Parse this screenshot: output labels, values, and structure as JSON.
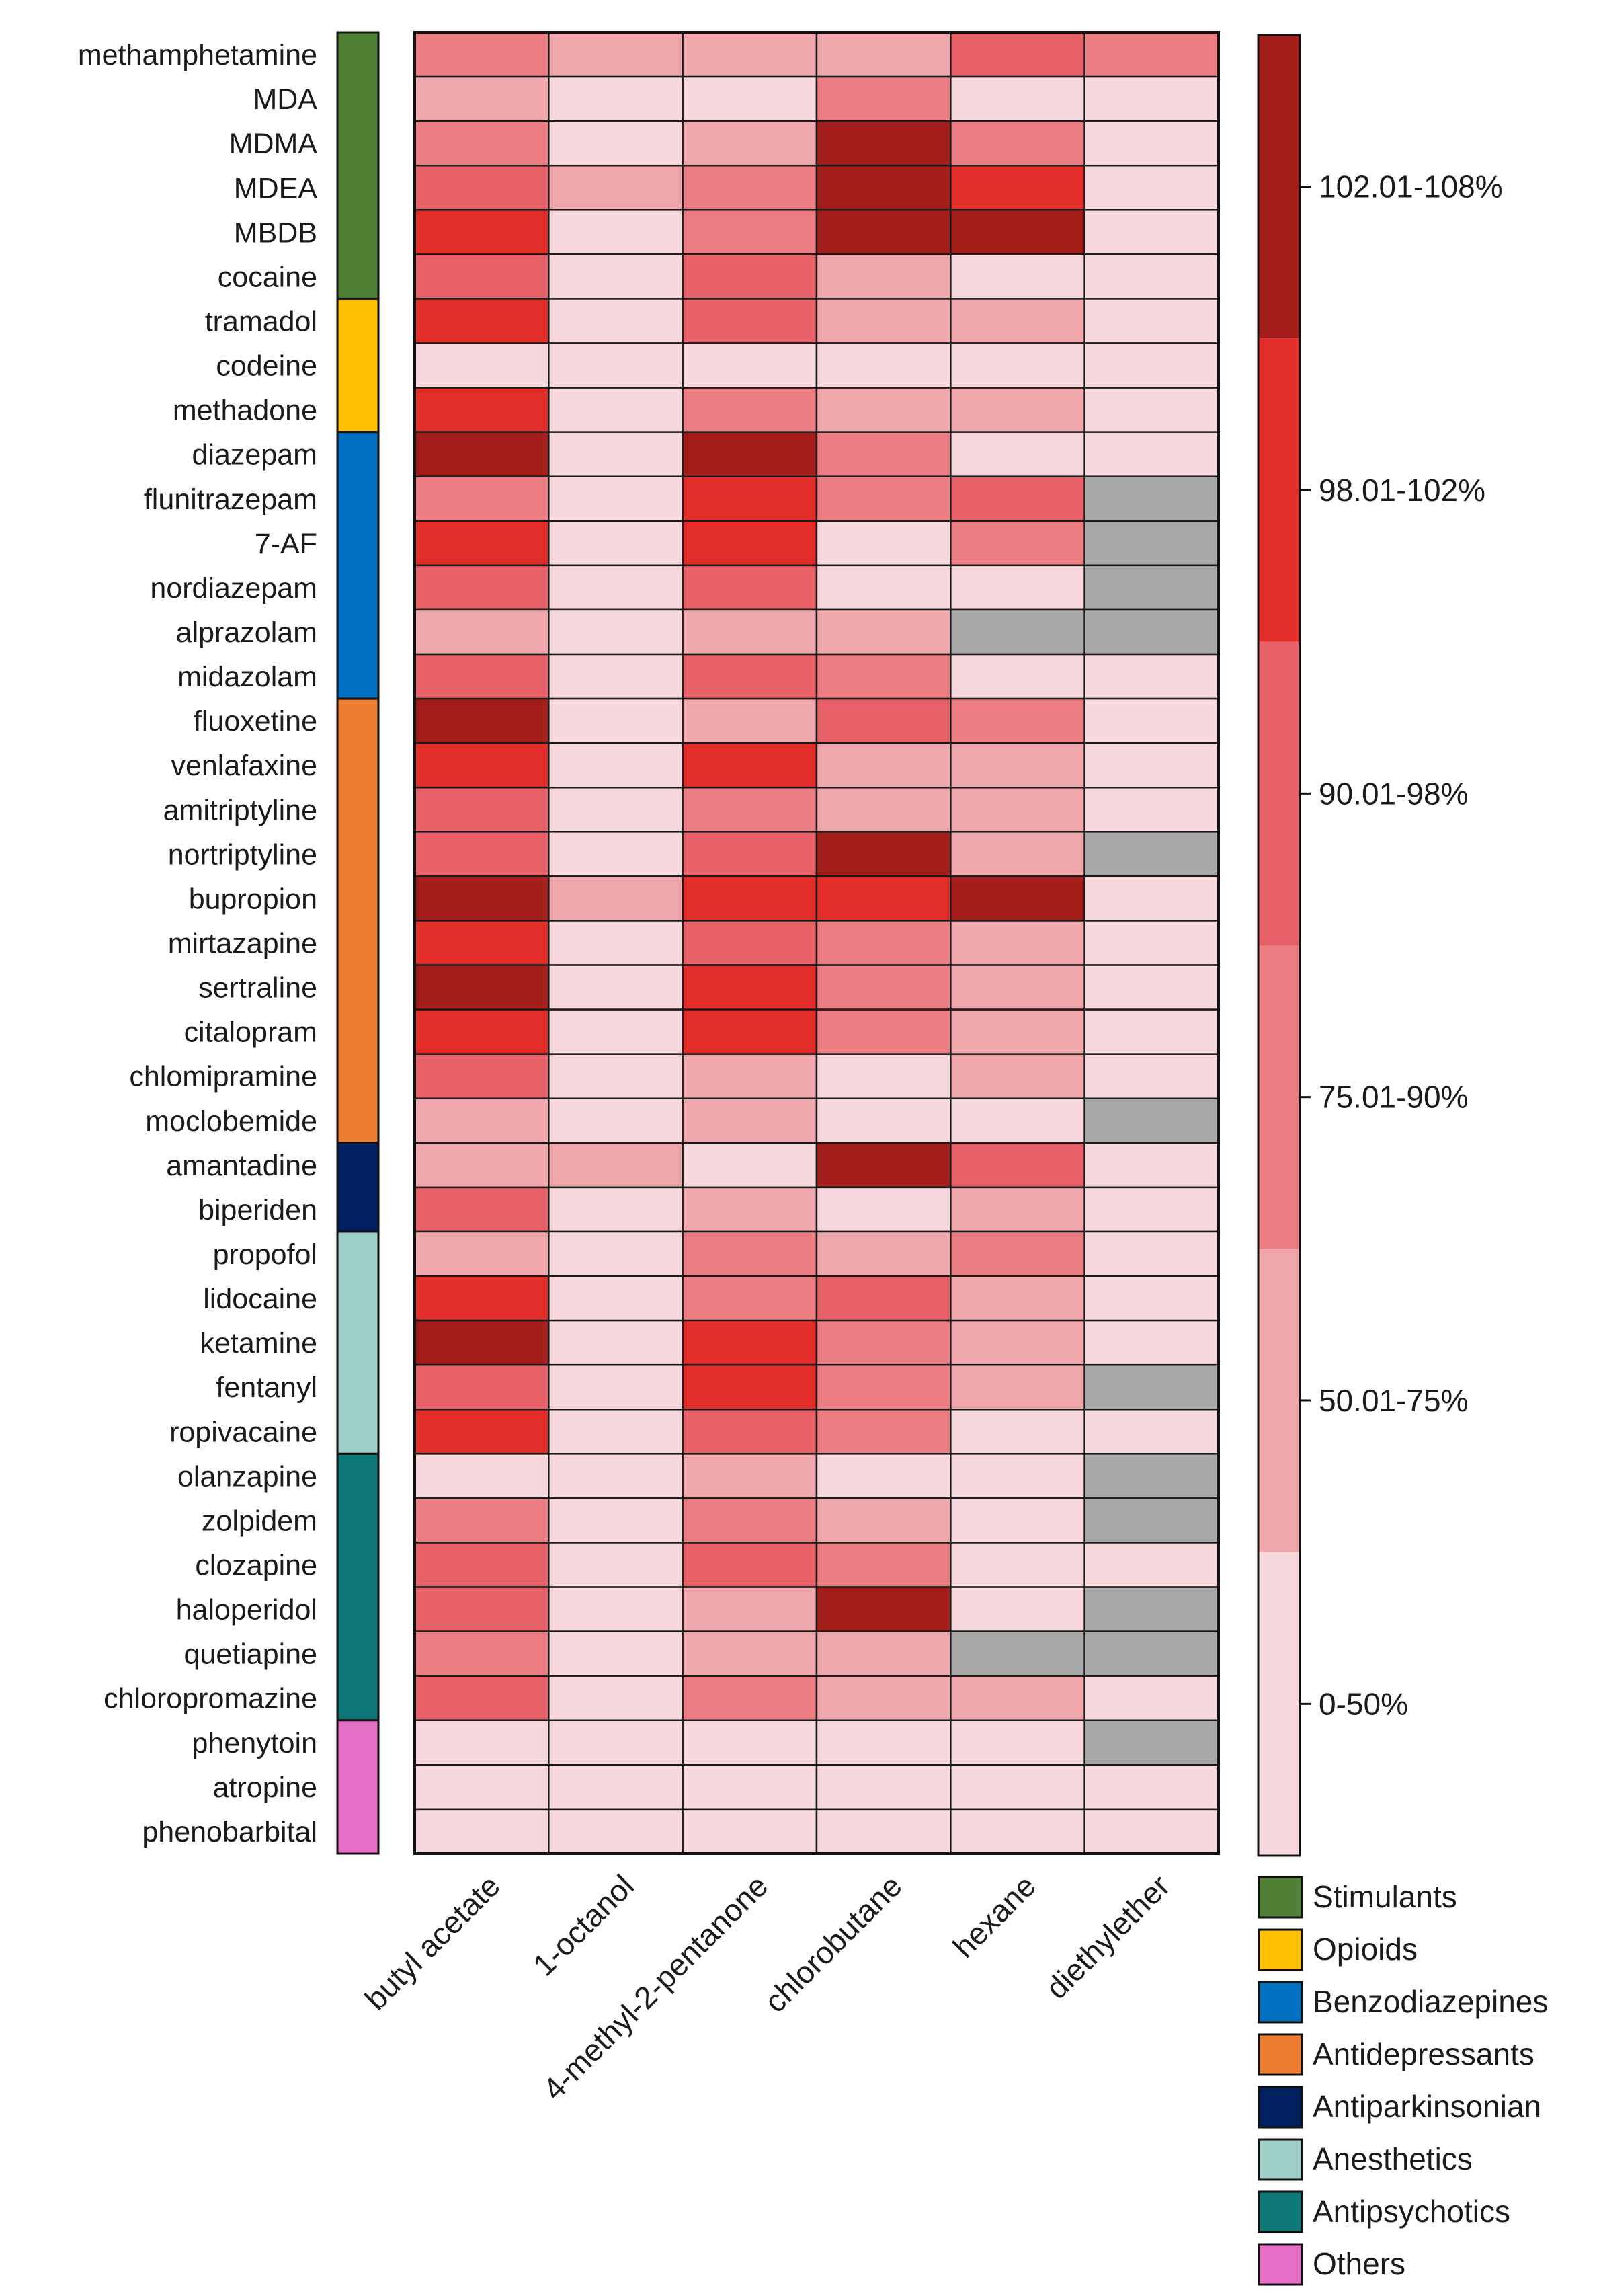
{
  "chart_data": {
    "type": "heatmap",
    "title": "",
    "xlabel": "",
    "ylabel": "",
    "columns": [
      "butyl acetate",
      "1-octanol",
      "4-methyl-2-pentanone",
      "chlorobutane",
      "hexane",
      "diethylether"
    ],
    "rows": [
      "methamphetamine",
      "MDA",
      "MDMA",
      "MDEA",
      "MBDB",
      "cocaine",
      "tramadol",
      "codeine",
      "methadone",
      "diazepam",
      "flunitrazepam",
      "7-AF",
      "nordiazepam",
      "alprazolam",
      "midazolam",
      "fluoxetine",
      "venlafaxine",
      "amitriptyline",
      "nortriptyline",
      "bupropion",
      "mirtazapine",
      "sertraline",
      "citalopram",
      "chlomipramine",
      "moclobemide",
      "amantadine",
      "biperiden",
      "propofol",
      "lidocaine",
      "ketamine",
      "fentanyl",
      "ropivacaine",
      "olanzapine",
      "zolpidem",
      "clozapine",
      "haloperidol",
      "quetiapine",
      "chloropromazine",
      "phenytoin",
      "atropine",
      "phenobarbital"
    ],
    "row_groups": [
      0,
      0,
      0,
      0,
      0,
      0,
      1,
      1,
      1,
      2,
      2,
      2,
      2,
      2,
      2,
      3,
      3,
      3,
      3,
      3,
      3,
      3,
      3,
      3,
      3,
      4,
      4,
      5,
      5,
      5,
      5,
      5,
      6,
      6,
      6,
      6,
      6,
      6,
      7,
      7,
      7
    ],
    "groups": [
      {
        "name": "Stimulants",
        "color": "#4f7f34"
      },
      {
        "name": "Opioids",
        "color": "#fec000"
      },
      {
        "name": "Benzodiazepines",
        "color": "#0070c0"
      },
      {
        "name": "Antidepressants",
        "color": "#ed7d31"
      },
      {
        "name": "Antiparkinsonian",
        "color": "#002060"
      },
      {
        "name": "Anesthetics",
        "color": "#9fd0c8"
      },
      {
        "name": "Antipsychotics",
        "color": "#0e7876"
      },
      {
        "name": "Others",
        "color": "#e56fc6"
      }
    ],
    "value_note": "values are color-class indices: 0=0-50%, 1=50.01-75%, 2=75.01-90%, 3=90.01-98%, 4=98.01-102%, 5=102.01-108%, -1=not determined (grey)",
    "values": [
      [
        2,
        1,
        1,
        1,
        3,
        2
      ],
      [
        1,
        0,
        0,
        2,
        0,
        0
      ],
      [
        2,
        0,
        1,
        5,
        2,
        0
      ],
      [
        3,
        1,
        2,
        5,
        4,
        0
      ],
      [
        4,
        0,
        2,
        5,
        5,
        0
      ],
      [
        3,
        0,
        3,
        1,
        0,
        0
      ],
      [
        4,
        0,
        3,
        1,
        1,
        0
      ],
      [
        0,
        0,
        0,
        0,
        0,
        0
      ],
      [
        4,
        0,
        2,
        1,
        1,
        0
      ],
      [
        5,
        0,
        5,
        2,
        0,
        0
      ],
      [
        2,
        0,
        4,
        2,
        3,
        -1
      ],
      [
        4,
        0,
        4,
        0,
        2,
        -1
      ],
      [
        3,
        0,
        3,
        0,
        0,
        -1
      ],
      [
        1,
        0,
        1,
        1,
        -1,
        -1
      ],
      [
        3,
        0,
        3,
        2,
        0,
        0
      ],
      [
        5,
        0,
        1,
        3,
        2,
        0
      ],
      [
        4,
        0,
        4,
        1,
        1,
        0
      ],
      [
        3,
        0,
        2,
        1,
        1,
        0
      ],
      [
        3,
        0,
        3,
        5,
        1,
        -1
      ],
      [
        5,
        1,
        4,
        4,
        5,
        0
      ],
      [
        4,
        0,
        3,
        2,
        1,
        0
      ],
      [
        5,
        0,
        4,
        2,
        1,
        0
      ],
      [
        4,
        0,
        4,
        2,
        1,
        0
      ],
      [
        3,
        0,
        1,
        0,
        1,
        0
      ],
      [
        1,
        0,
        1,
        0,
        0,
        -1
      ],
      [
        1,
        1,
        0,
        5,
        3,
        0
      ],
      [
        3,
        0,
        1,
        0,
        1,
        0
      ],
      [
        1,
        0,
        2,
        1,
        2,
        0
      ],
      [
        4,
        0,
        2,
        3,
        1,
        0
      ],
      [
        5,
        0,
        4,
        2,
        1,
        0
      ],
      [
        3,
        0,
        4,
        2,
        1,
        -1
      ],
      [
        4,
        0,
        3,
        2,
        0,
        0
      ],
      [
        0,
        0,
        1,
        0,
        0,
        -1
      ],
      [
        2,
        0,
        2,
        1,
        0,
        -1
      ],
      [
        3,
        0,
        3,
        2,
        0,
        0
      ],
      [
        3,
        0,
        1,
        5,
        0,
        -1
      ],
      [
        2,
        0,
        1,
        1,
        -1,
        -1
      ],
      [
        3,
        0,
        2,
        1,
        1,
        0
      ],
      [
        0,
        0,
        0,
        0,
        0,
        -1
      ],
      [
        0,
        0,
        0,
        0,
        0,
        0
      ],
      [
        0,
        0,
        0,
        0,
        0,
        0
      ]
    ],
    "scale": {
      "classes": [
        "0-50%",
        "50.01-75%",
        "75.01-90%",
        "90.01-98%",
        "98.01-102%",
        "102.01-108%"
      ],
      "colors": [
        "#f7d9dd",
        "#f0a7ab",
        "#ec7e83",
        "#e86068",
        "#e32d28",
        "#a31e1a"
      ],
      "missing_color": "#a8a8a8"
    }
  }
}
